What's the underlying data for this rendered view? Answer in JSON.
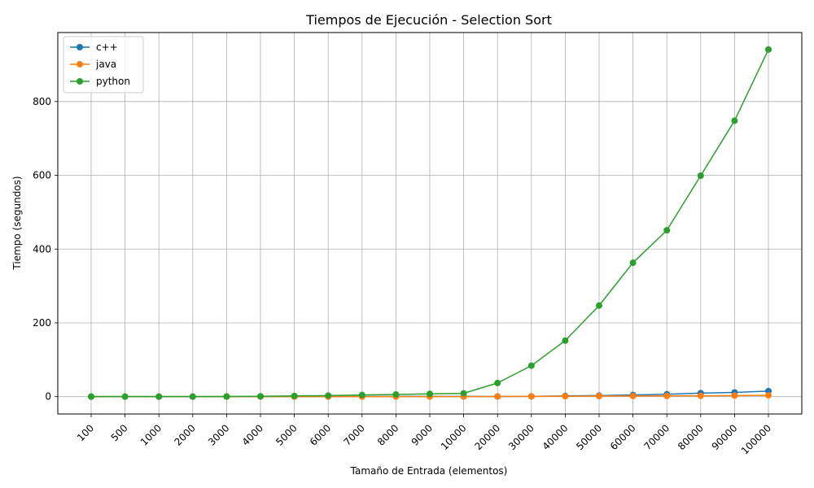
{
  "chart_data": {
    "type": "line",
    "title": "Tiempos de Ejecución - Selection Sort",
    "xlabel": "Tamaño de Entrada (elementos)",
    "ylabel": "Tiempo (segundos)",
    "categories": [
      "100",
      "500",
      "1000",
      "2000",
      "3000",
      "4000",
      "5000",
      "6000",
      "7000",
      "8000",
      "9000",
      "10000",
      "20000",
      "30000",
      "40000",
      "50000",
      "60000",
      "70000",
      "80000",
      "90000",
      "100000"
    ],
    "ylim": [
      -47,
      987
    ],
    "yticks": [
      0,
      200,
      400,
      600,
      800
    ],
    "grid": true,
    "legend_position": "top-left",
    "series": [
      {
        "name": "c++",
        "color": "#1f77b4",
        "values": [
          0.0,
          0.0,
          0.0,
          0.0,
          0.1,
          0.2,
          0.3,
          0.4,
          0.5,
          0.6,
          0.7,
          0.8,
          0.5,
          0.8,
          2.0,
          3.0,
          4.5,
          6.5,
          9.5,
          11.5,
          15.0
        ]
      },
      {
        "name": "java",
        "color": "#ff7f0e",
        "values": [
          0.0,
          0.0,
          0.0,
          0.0,
          0.0,
          0.0,
          0.0,
          0.1,
          0.1,
          0.1,
          0.1,
          0.2,
          0.4,
          0.8,
          1.0,
          1.5,
          1.8,
          2.0,
          2.2,
          2.8,
          3.5
        ]
      },
      {
        "name": "python",
        "color": "#2ca02c",
        "values": [
          0.0,
          0.0,
          0.0,
          0.0,
          0.5,
          1.0,
          2.0,
          3.0,
          4.5,
          6.0,
          7.5,
          9.0,
          37.0,
          84.0,
          152.0,
          247.0,
          363.0,
          451.0,
          599.0,
          748.0,
          941.0
        ]
      }
    ]
  }
}
